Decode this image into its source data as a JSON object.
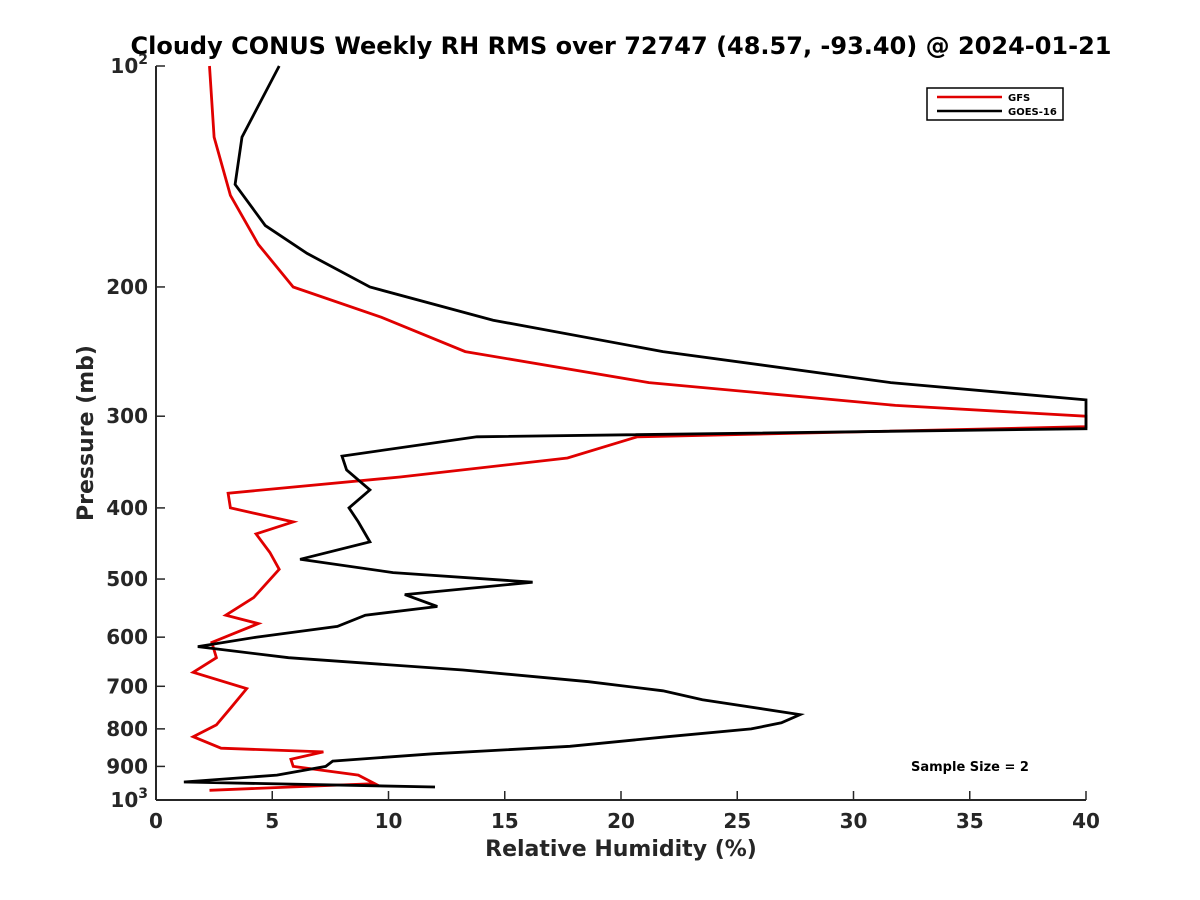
{
  "chart_data": {
    "type": "line",
    "title": "Cloudy CONUS Weekly RH RMS over 72747 (48.57, -93.40) @ 2024-01-21",
    "xlabel": "Relative Humidity (%)",
    "ylabel": "Pressure (mb)",
    "xlim": [
      0,
      40
    ],
    "ylim": [
      100,
      1000
    ],
    "yscale": "log",
    "y_reversed": true,
    "x_ticks": [
      0,
      5,
      10,
      15,
      20,
      25,
      30,
      35,
      40
    ],
    "x_tick_labels": [
      "0",
      "5",
      "10",
      "15",
      "20",
      "25",
      "30",
      "35",
      "40"
    ],
    "y_ticks": [
      100,
      200,
      300,
      400,
      500,
      600,
      700,
      800,
      900,
      1000
    ],
    "y_tick_labels": [
      {
        "base": "10",
        "exp": "2"
      },
      {
        "base": "200",
        "exp": ""
      },
      {
        "base": "300",
        "exp": ""
      },
      {
        "base": "400",
        "exp": ""
      },
      {
        "base": "500",
        "exp": ""
      },
      {
        "base": "600",
        "exp": ""
      },
      {
        "base": "700",
        "exp": ""
      },
      {
        "base": "800",
        "exp": ""
      },
      {
        "base": "900",
        "exp": ""
      },
      {
        "base": "10",
        "exp": "3"
      }
    ],
    "legend_position": "top-right",
    "annotation": "Sample Size = 2",
    "series": [
      {
        "name": "GFS",
        "color": "#e00000",
        "points": [
          [
            2.3,
            100
          ],
          [
            2.5,
            125
          ],
          [
            3.2,
            150
          ],
          [
            4.4,
            175
          ],
          [
            5.9,
            200
          ],
          [
            9.7,
            220
          ],
          [
            13.3,
            245
          ],
          [
            21.2,
            270
          ],
          [
            31.8,
            290
          ],
          [
            40.0,
            300
          ],
          [
            40.0,
            310
          ],
          [
            20.7,
            320
          ],
          [
            17.7,
            342
          ],
          [
            10.5,
            363
          ],
          [
            3.1,
            382
          ],
          [
            3.2,
            400
          ],
          [
            5.9,
            418
          ],
          [
            4.3,
            434
          ],
          [
            4.9,
            460
          ],
          [
            5.3,
            485
          ],
          [
            4.2,
            530
          ],
          [
            3.0,
            560
          ],
          [
            4.4,
            575
          ],
          [
            2.4,
            610
          ],
          [
            2.6,
            640
          ],
          [
            1.6,
            670
          ],
          [
            3.9,
            705
          ],
          [
            3.2,
            750
          ],
          [
            2.6,
            790
          ],
          [
            1.6,
            820
          ],
          [
            2.8,
            850
          ],
          [
            7.2,
            860
          ],
          [
            5.8,
            880
          ],
          [
            5.9,
            900
          ],
          [
            8.7,
            925
          ],
          [
            9.4,
            950
          ],
          [
            2.3,
            970
          ]
        ]
      },
      {
        "name": "GOES-16",
        "color": "#000000",
        "points": [
          [
            5.3,
            100
          ],
          [
            3.7,
            125
          ],
          [
            3.4,
            145
          ],
          [
            4.7,
            165
          ],
          [
            6.5,
            180
          ],
          [
            9.2,
            200
          ],
          [
            14.5,
            222
          ],
          [
            21.8,
            245
          ],
          [
            31.6,
            270
          ],
          [
            40.0,
            285
          ],
          [
            40.0,
            312
          ],
          [
            13.8,
            320
          ],
          [
            8.0,
            340
          ],
          [
            8.2,
            355
          ],
          [
            9.2,
            378
          ],
          [
            8.3,
            400
          ],
          [
            8.7,
            418
          ],
          [
            9.2,
            445
          ],
          [
            6.2,
            470
          ],
          [
            10.2,
            490
          ],
          [
            16.2,
            505
          ],
          [
            10.7,
            525
          ],
          [
            12.1,
            545
          ],
          [
            9.0,
            560
          ],
          [
            7.8,
            580
          ],
          [
            4.3,
            600
          ],
          [
            1.8,
            618
          ],
          [
            5.7,
            640
          ],
          [
            13.2,
            665
          ],
          [
            18.6,
            690
          ],
          [
            21.8,
            710
          ],
          [
            23.5,
            730
          ],
          [
            27.7,
            765
          ],
          [
            26.9,
            785
          ],
          [
            25.6,
            800
          ],
          [
            22.0,
            820
          ],
          [
            17.8,
            845
          ],
          [
            11.9,
            865
          ],
          [
            7.6,
            885
          ],
          [
            7.3,
            900
          ],
          [
            5.2,
            925
          ],
          [
            1.2,
            945
          ],
          [
            12.0,
            960
          ]
        ]
      }
    ]
  }
}
